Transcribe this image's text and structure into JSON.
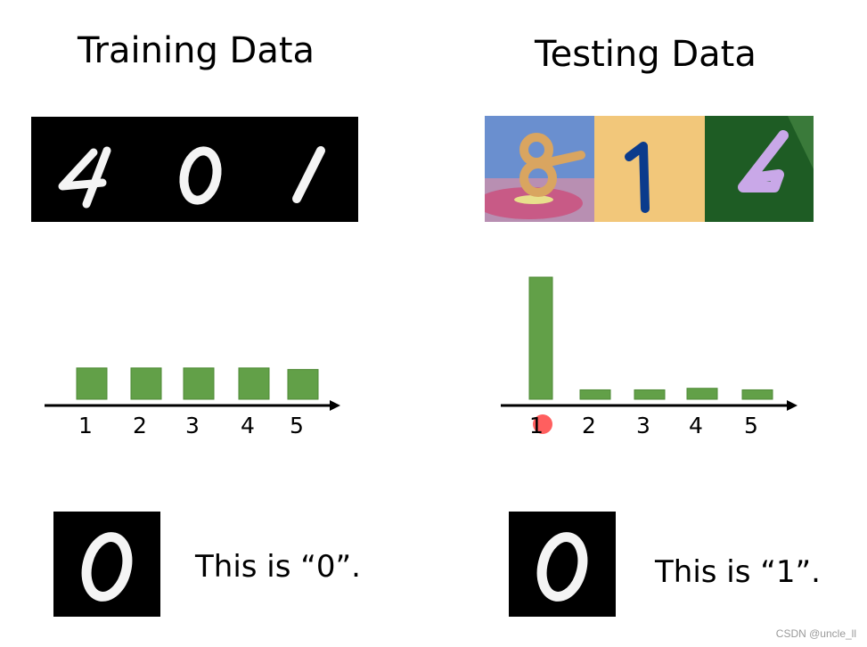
{
  "left": {
    "title": "Training Data",
    "caption": "This is “0”.",
    "strip_digits": [
      "4",
      "0",
      "1"
    ]
  },
  "right": {
    "title": "Testing Data",
    "caption": "This is “1”.",
    "strip_digits": [
      "8",
      "1",
      "6"
    ]
  },
  "chart_data": [
    {
      "type": "bar",
      "categories": [
        "1",
        "2",
        "3",
        "4",
        "5"
      ],
      "values": [
        1.0,
        1.0,
        1.0,
        1.0,
        0.95
      ],
      "bar_color": "#62a048",
      "ylim": [
        0,
        3.9
      ]
    },
    {
      "type": "bar",
      "categories": [
        "1",
        "2",
        "3",
        "4",
        "5"
      ],
      "values": [
        3.9,
        0.3,
        0.3,
        0.35,
        0.3
      ],
      "bar_color": "#62a048",
      "ylim": [
        0,
        3.9
      ],
      "annotation": {
        "category": "1",
        "marker": "red-dot",
        "color": "#ff2a2a"
      }
    }
  ],
  "watermark": "CSDN @uncle_ll"
}
